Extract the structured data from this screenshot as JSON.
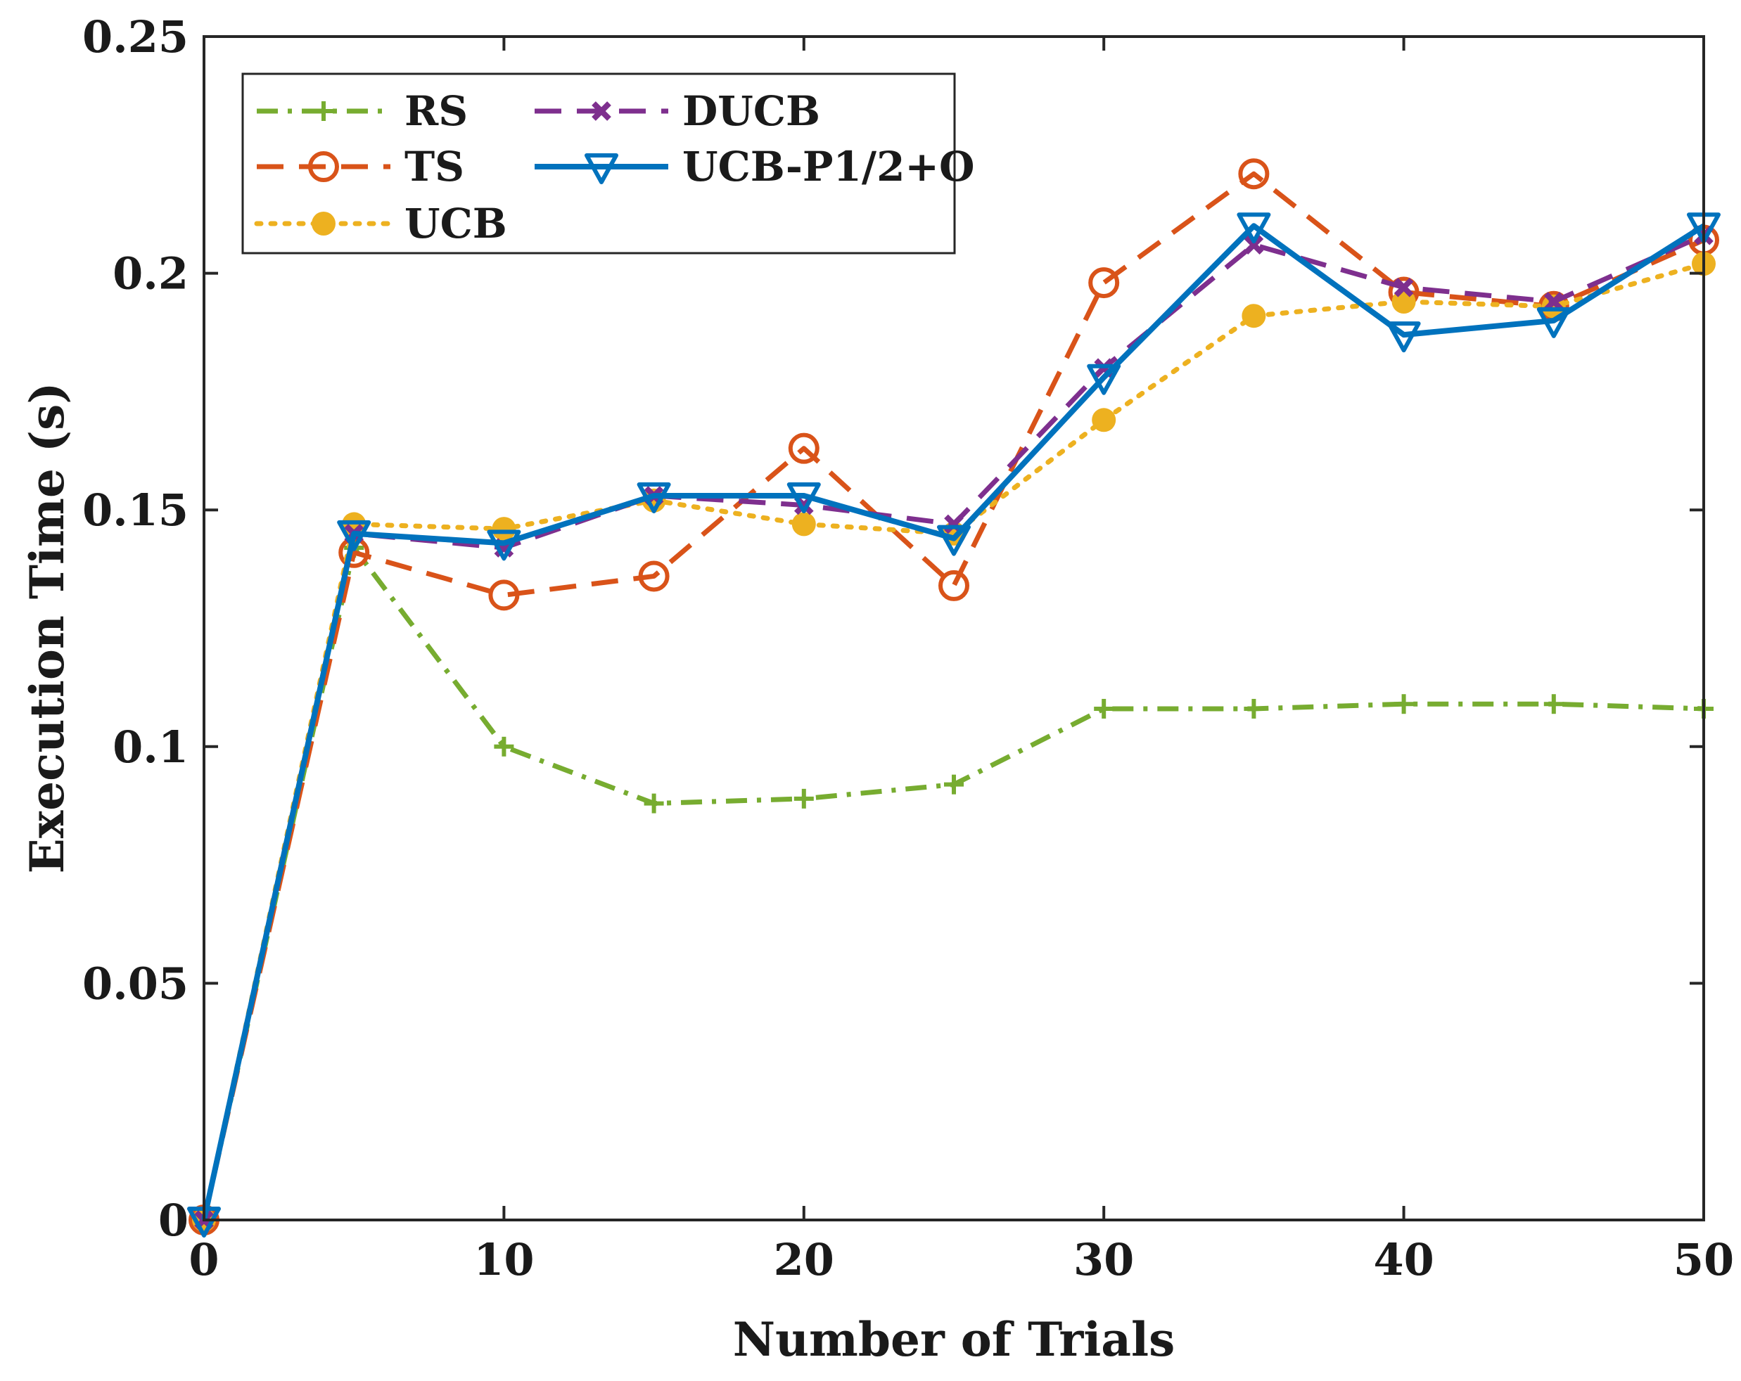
{
  "chart_data": {
    "type": "line",
    "title": "",
    "xlabel": "Number of Trials",
    "ylabel": "Execution Time (s)",
    "xlim": [
      0,
      50
    ],
    "ylim": [
      0,
      0.25
    ],
    "grid": false,
    "legend_placement": "top-left",
    "x_ticks": [
      0,
      10,
      20,
      30,
      40,
      50
    ],
    "x_tick_labels": [
      "0",
      "10",
      "20",
      "30",
      "40",
      "50"
    ],
    "y_ticks": [
      0,
      0.05,
      0.1,
      0.15,
      0.2,
      0.25
    ],
    "y_tick_labels": [
      "0",
      "0.05",
      "0.1",
      "0.15",
      "0.2",
      "0.25"
    ],
    "x": [
      0,
      5,
      10,
      15,
      20,
      25,
      30,
      35,
      40,
      45,
      50
    ],
    "series": [
      {
        "name": "RS",
        "color": "#77ac30",
        "dash": "dashdot",
        "marker": "plus",
        "values": [
          0,
          0.142,
          0.1,
          0.088,
          0.089,
          0.092,
          0.108,
          0.108,
          0.109,
          0.109,
          0.108
        ]
      },
      {
        "name": "TS",
        "color": "#d95319",
        "dash": "dashed",
        "marker": "circle",
        "values": [
          0,
          0.141,
          0.132,
          0.136,
          0.163,
          0.134,
          0.198,
          0.221,
          0.196,
          0.193,
          0.207
        ]
      },
      {
        "name": "UCB",
        "color": "#edb120",
        "dash": "dotted",
        "marker": "filled-circle",
        "values": [
          0,
          0.147,
          0.146,
          0.152,
          0.147,
          0.145,
          0.169,
          0.191,
          0.194,
          0.193,
          0.202
        ]
      },
      {
        "name": "DUCB",
        "color": "#7e2f8e",
        "dash": "dashed",
        "marker": "x",
        "values": [
          0,
          0.145,
          0.142,
          0.153,
          0.151,
          0.147,
          0.18,
          0.206,
          0.197,
          0.194,
          0.208
        ]
      },
      {
        "name": "UCB-P1/2+O",
        "color": "#0072bd",
        "dash": "solid",
        "marker": "triangle-down",
        "values": [
          0,
          0.145,
          0.143,
          0.153,
          0.153,
          0.144,
          0.178,
          0.21,
          0.187,
          0.19,
          0.21
        ]
      }
    ]
  }
}
